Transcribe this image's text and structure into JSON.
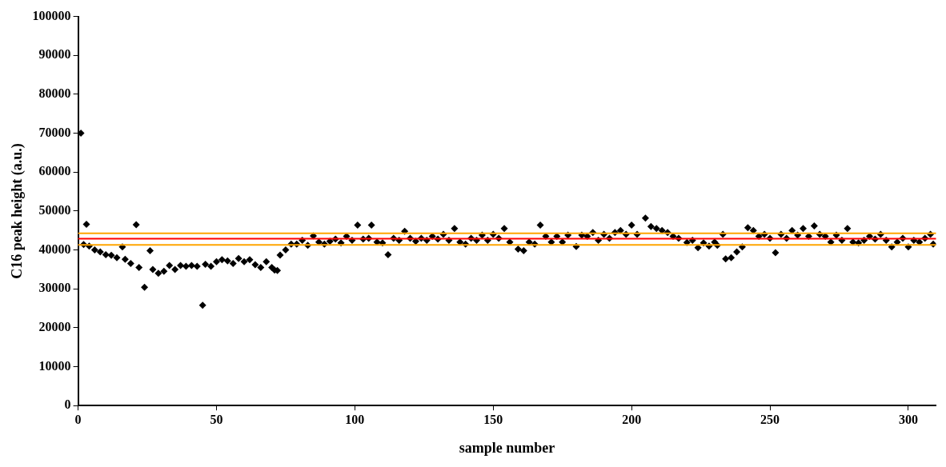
{
  "chart_data": {
    "type": "scatter",
    "xlabel": "sample number",
    "ylabel": "C16 peak height (a.u.)",
    "x": [
      1,
      2,
      3,
      4,
      6,
      8,
      10,
      12,
      14,
      16,
      17,
      19,
      21,
      22,
      24,
      26,
      27,
      29,
      31,
      33,
      35,
      37,
      39,
      41,
      43,
      45,
      46,
      48,
      50,
      52,
      54,
      56,
      58,
      60,
      62,
      64,
      66,
      68,
      70,
      71,
      72,
      73,
      75,
      77,
      79,
      81,
      83,
      85,
      87,
      89,
      91,
      93,
      95,
      97,
      99,
      101,
      103,
      105,
      106,
      108,
      110,
      112,
      114,
      116,
      118,
      120,
      122,
      124,
      126,
      128,
      130,
      132,
      134,
      136,
      138,
      140,
      142,
      144,
      146,
      148,
      150,
      152,
      154,
      156,
      159,
      161,
      163,
      165,
      167,
      169,
      171,
      173,
      175,
      177,
      180,
      182,
      184,
      186,
      188,
      190,
      192,
      194,
      196,
      198,
      200,
      202,
      205,
      207,
      209,
      211,
      213,
      215,
      217,
      220,
      222,
      224,
      226,
      228,
      230,
      231,
      233,
      234,
      236,
      238,
      240,
      242,
      244,
      246,
      248,
      250,
      252,
      254,
      256,
      258,
      260,
      262,
      264,
      266,
      268,
      270,
      272,
      274,
      276,
      278,
      280,
      282,
      284,
      286,
      288,
      290,
      292,
      294,
      296,
      298,
      300,
      302,
      304,
      306,
      308,
      309
    ],
    "series": [
      {
        "color": "#000000",
        "values": [
          70000,
          41400,
          46600,
          41000,
          40000,
          39500,
          38800,
          38600,
          38000,
          40800,
          37600,
          36500,
          46500,
          35500,
          30400,
          39800,
          35000,
          34000,
          34500,
          36000,
          35000,
          36000,
          35800,
          36000,
          35800,
          25800,
          36300,
          35800,
          37000,
          37500,
          37200,
          36500,
          37800,
          37000,
          37500,
          36200,
          35500,
          37000,
          35500,
          34800,
          34700,
          38700,
          40000,
          41500,
          41500,
          42500,
          41200,
          43600,
          42000,
          41500,
          42200,
          42800,
          41800,
          43500,
          42500,
          46400,
          42800,
          43000,
          46400,
          42000,
          41800,
          38800,
          43000,
          42500,
          44800,
          43000,
          42200,
          43000,
          42500,
          43500,
          42800,
          44000,
          42500,
          45500,
          42000,
          41500,
          43000,
          42500,
          43800,
          42500,
          44000,
          43000,
          45500,
          42000,
          40200,
          39800,
          42000,
          41500,
          46400,
          43500,
          42000,
          43500,
          42000,
          43800,
          40900,
          43800,
          43500,
          44500,
          42500,
          44000,
          43000,
          44500,
          45000,
          44000,
          46400,
          44000,
          48200,
          46000,
          45500,
          45000,
          44500,
          43500,
          43000,
          41900,
          42500,
          40600,
          41800,
          41000,
          42000,
          41200,
          44000,
          37700,
          38000,
          39500,
          40800,
          45700,
          45000,
          43500,
          44000,
          43000,
          39300,
          44000,
          43000,
          45000,
          43800,
          45500,
          43500,
          46200,
          44000,
          43500,
          42000,
          43800,
          42500,
          45500,
          42000,
          41800,
          42500,
          43500,
          42800,
          44000,
          42500,
          40800,
          42000,
          43000,
          40800,
          42500,
          42000,
          43000,
          44000,
          41500
        ]
      }
    ],
    "marker": "diamond",
    "xlim": [
      0,
      310
    ],
    "xticks": [
      0,
      50,
      100,
      150,
      200,
      250,
      300
    ],
    "ylim": [
      0,
      100000
    ],
    "yticks": [
      0,
      10000,
      20000,
      30000,
      40000,
      50000,
      60000,
      70000,
      80000,
      90000,
      100000
    ],
    "grid": false,
    "legend": false,
    "ref_lines": [
      {
        "axis": "y",
        "value": 44300,
        "color": "#ffa500"
      },
      {
        "axis": "y",
        "value": 42900,
        "color": "#ff0000"
      },
      {
        "axis": "y",
        "value": 41300,
        "color": "#ffa500"
      }
    ]
  }
}
